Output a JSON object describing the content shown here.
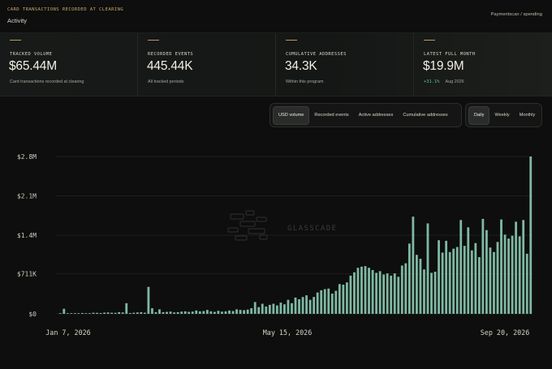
{
  "header": {
    "kicker": "CARD TRANSACTIONS RECORDED AT CLEARING",
    "title": "Activity",
    "breadcrumb": "Paymentscan / spending"
  },
  "kpis": [
    {
      "label": "TRACKED VOLUME",
      "value": "$65.44M",
      "sub": "Card transactions recorded at clearing"
    },
    {
      "label": "RECORDED EVENTS",
      "value": "445.44K",
      "sub": "All tracked periods"
    },
    {
      "label": "CUMULATIVE ADDRESSES",
      "value": "34.3K",
      "sub": "Within this program"
    },
    {
      "label": "LATEST FULL MONTH",
      "value": "$19.9M",
      "delta": "+31.1%",
      "sub": "Aug 2026"
    }
  ],
  "metric_tabs": [
    "USD volume",
    "Recorded events",
    "Active addresses",
    "Cumulative addresses"
  ],
  "metric_active": 0,
  "period_tabs": [
    "Daily",
    "Weekly",
    "Monthly"
  ],
  "period_active": 0,
  "watermark": "GLASSCADE",
  "colors": {
    "bar": "#7fb8a3",
    "accent": "#c9a86a",
    "delta": "#58c79a",
    "bg": "#0d0e0d"
  },
  "chart_data": {
    "type": "bar",
    "series": [
      {
        "name": "USD volume"
      }
    ],
    "ylim": [
      0,
      2800000
    ],
    "y_ticks": [
      {
        "value": 0,
        "label": "$0"
      },
      {
        "value": 711000,
        "label": "$711K"
      },
      {
        "value": 1400000,
        "label": "$1.4M"
      },
      {
        "value": 2100000,
        "label": "$2.1M"
      },
      {
        "value": 2800000,
        "label": "$2.8M"
      }
    ],
    "x_ticks": [
      "Jan 7, 2026",
      "May 15, 2026",
      "Sep 20, 2026"
    ],
    "grid": true,
    "values": [
      0,
      90000,
      10000,
      8000,
      12000,
      9000,
      15000,
      10000,
      12000,
      20000,
      18000,
      15000,
      22000,
      25000,
      20000,
      18000,
      30000,
      25000,
      190000,
      15000,
      20000,
      25000,
      30000,
      20000,
      480000,
      100000,
      30000,
      80000,
      30000,
      35000,
      40000,
      25000,
      30000,
      40000,
      45000,
      35000,
      40000,
      60000,
      45000,
      50000,
      70000,
      45000,
      35000,
      55000,
      40000,
      45000,
      60000,
      50000,
      80000,
      70000,
      65000,
      75000,
      100000,
      210000,
      120000,
      180000,
      130000,
      160000,
      180000,
      150000,
      200000,
      170000,
      250000,
      190000,
      290000,
      260000,
      300000,
      330000,
      250000,
      300000,
      380000,
      420000,
      440000,
      450000,
      360000,
      410000,
      530000,
      520000,
      560000,
      680000,
      740000,
      820000,
      840000,
      850000,
      820000,
      780000,
      730000,
      760000,
      700000,
      720000,
      680000,
      720000,
      660000,
      860000,
      900000,
      1250000,
      1730000,
      1050000,
      980000,
      790000,
      1610000,
      730000,
      750000,
      1310000,
      1090000,
      1300000,
      1100000,
      1160000,
      1190000,
      1670000,
      1210000,
      1540000,
      1130000,
      1260000,
      1010000,
      1690000,
      1490000,
      1180000,
      1100000,
      1280000,
      1680000,
      1410000,
      1340000,
      1390000,
      1640000,
      1380000,
      1670000,
      1070000,
      2800000
    ]
  }
}
